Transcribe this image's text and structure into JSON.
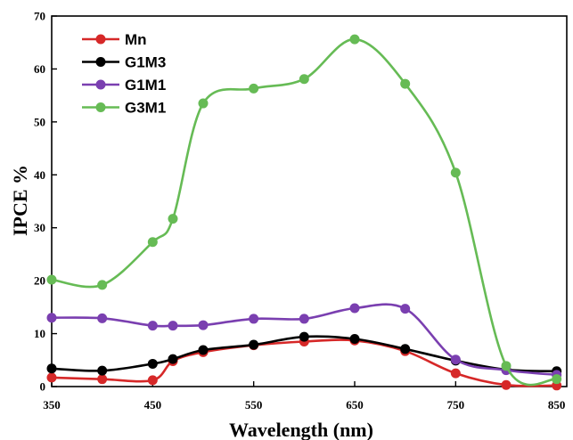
{
  "chart_data": {
    "type": "line",
    "title": "",
    "xlabel": "Wavelength (nm)",
    "ylabel": "IPCE %",
    "xlim": [
      350,
      860
    ],
    "ylim": [
      0,
      70
    ],
    "xticks": [
      350,
      450,
      550,
      650,
      750,
      850
    ],
    "yticks": [
      0,
      10,
      20,
      30,
      40,
      50,
      60,
      70
    ],
    "grid": false,
    "legend": "top-left",
    "series": [
      {
        "name": "Mn",
        "color": "#d62828",
        "x": [
          350,
          400,
          450,
          470,
          500,
          550,
          600,
          650,
          700,
          750,
          800,
          850
        ],
        "y": [
          1.7,
          1.4,
          1.2,
          4.8,
          6.5,
          7.8,
          8.5,
          8.7,
          6.7,
          2.5,
          0.3,
          0.2
        ]
      },
      {
        "name": "G1M3",
        "color": "#000000",
        "x": [
          350,
          400,
          450,
          470,
          500,
          550,
          600,
          650,
          700,
          750,
          800,
          850
        ],
        "y": [
          3.4,
          3.0,
          4.3,
          5.2,
          6.9,
          7.9,
          9.4,
          9.0,
          7.1,
          4.9,
          3.2,
          2.9
        ]
      },
      {
        "name": "G1M1",
        "color": "#7a3fb0",
        "x": [
          350,
          400,
          450,
          470,
          500,
          550,
          600,
          650,
          700,
          750,
          800,
          850
        ],
        "y": [
          13.0,
          12.9,
          11.5,
          11.5,
          11.6,
          12.8,
          12.8,
          14.8,
          14.7,
          5.1,
          3.1,
          2.2
        ]
      },
      {
        "name": "G3M1",
        "color": "#66bb55",
        "x": [
          350,
          400,
          450,
          470,
          500,
          550,
          600,
          650,
          700,
          750,
          800,
          850
        ],
        "y": [
          20.2,
          19.2,
          27.3,
          31.7,
          53.5,
          56.3,
          58.1,
          65.6,
          57.2,
          40.4,
          3.9,
          1.4
        ]
      }
    ]
  }
}
